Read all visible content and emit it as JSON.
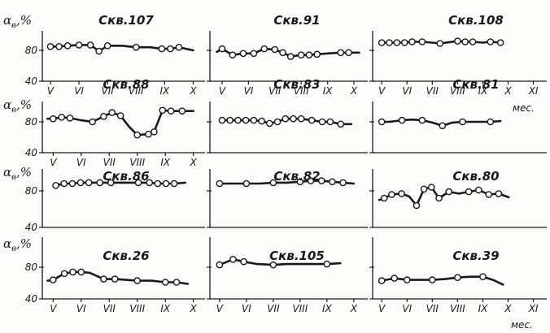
{
  "figure": {
    "y_axis_symbol": "α",
    "y_axis_subscript": "в",
    "y_axis_suffix": ",%",
    "unit_label": "мес."
  },
  "chart_data": [
    {
      "type": "line",
      "title": "Скв.107",
      "categories": [
        "V",
        "VI",
        "VII",
        "VIII",
        "IX",
        "X"
      ],
      "x": [
        5.0,
        5.3,
        5.6,
        6.0,
        6.4,
        6.7,
        7.0,
        7.5,
        8.0,
        8.5,
        8.9,
        9.2,
        9.5,
        10.0
      ],
      "y": [
        85,
        85,
        86,
        87,
        87,
        79,
        86,
        86,
        84,
        84,
        82,
        82,
        84,
        80
      ],
      "markers": [
        true,
        true,
        true,
        true,
        true,
        true,
        true,
        false,
        true,
        false,
        true,
        true,
        true,
        false
      ],
      "ytick_labels": [
        "80",
        "40"
      ],
      "ylim": [
        40,
        100
      ],
      "xlim": [
        4.8,
        10.3
      ]
    },
    {
      "type": "line",
      "title": "Скв.91",
      "categories": [
        "V",
        "VI",
        "VII",
        "VIII",
        "IX",
        "X"
      ],
      "x": [
        4.8,
        5.0,
        5.4,
        5.8,
        6.2,
        6.6,
        7.0,
        7.3,
        7.6,
        8.0,
        8.3,
        8.6,
        9.0,
        9.5,
        9.8,
        10.2
      ],
      "y": [
        78,
        82,
        74,
        76,
        76,
        82,
        81,
        77,
        72,
        74,
        74,
        75,
        76,
        77,
        77,
        77
      ],
      "markers": [
        false,
        true,
        true,
        true,
        true,
        true,
        true,
        true,
        true,
        true,
        true,
        true,
        false,
        true,
        true,
        false
      ],
      "ytick_labels": [],
      "ylim": [
        40,
        100
      ],
      "xlim": [
        4.6,
        10.4
      ]
    },
    {
      "type": "line",
      "title": "Скв.108",
      "categories": [
        "V",
        "VI",
        "VII",
        "VIII",
        "IX",
        "X",
        "XI"
      ],
      "x": [
        5.0,
        5.3,
        5.6,
        5.9,
        6.2,
        6.6,
        7.0,
        7.3,
        8.0,
        8.3,
        8.6,
        9.0,
        9.3,
        9.7
      ],
      "y": [
        90,
        90,
        90,
        90,
        91,
        91,
        90,
        89,
        92,
        91,
        91,
        90,
        91,
        90
      ],
      "markers": [
        true,
        true,
        true,
        true,
        true,
        true,
        false,
        true,
        true,
        true,
        true,
        false,
        true,
        true
      ],
      "ytick_labels": [],
      "ylim": [
        40,
        100
      ],
      "xlim": [
        4.8,
        11.4
      ]
    },
    {
      "type": "line",
      "title": "Скв.88",
      "categories": [
        "V",
        "VI",
        "VII",
        "VIII",
        "IX",
        "X"
      ],
      "x": [
        4.8,
        5.0,
        5.3,
        5.6,
        6.0,
        6.4,
        6.8,
        7.1,
        7.4,
        7.7,
        8.0,
        8.4,
        8.6,
        8.9,
        9.2,
        9.6,
        10.0
      ],
      "y": [
        84,
        84,
        86,
        85,
        82,
        80,
        87,
        92,
        88,
        74,
        63,
        64,
        67,
        95,
        94,
        94,
        94
      ],
      "markers": [
        false,
        true,
        true,
        true,
        false,
        true,
        true,
        true,
        true,
        false,
        true,
        true,
        true,
        true,
        true,
        true,
        false
      ],
      "ytick_labels": [
        "80",
        "40"
      ],
      "ylim": [
        40,
        100
      ],
      "xlim": [
        4.7,
        10.3
      ]
    },
    {
      "type": "line",
      "title": "Скв.83",
      "categories": [],
      "x": [
        5.0,
        5.3,
        5.6,
        5.9,
        6.2,
        6.5,
        6.8,
        7.1,
        7.4,
        7.7,
        8.0,
        8.4,
        8.8,
        9.1,
        9.5,
        9.9
      ],
      "y": [
        82,
        82,
        82,
        82,
        82,
        81,
        78,
        80,
        84,
        84,
        84,
        82,
        80,
        80,
        77,
        77
      ],
      "markers": [
        true,
        true,
        true,
        true,
        true,
        true,
        true,
        true,
        true,
        true,
        true,
        true,
        true,
        true,
        true,
        false
      ],
      "ytick_labels": [],
      "ylim": [
        40,
        100
      ],
      "xlim": [
        4.6,
        10.4
      ]
    },
    {
      "type": "line",
      "title": "Скв.81",
      "categories": [],
      "x": [
        5.0,
        5.3,
        5.8,
        6.2,
        6.6,
        7.0,
        7.4,
        7.8,
        8.2,
        8.6,
        9.0,
        9.3,
        9.7
      ],
      "y": [
        80,
        80,
        82,
        83,
        82,
        79,
        75,
        79,
        80,
        80,
        80,
        80,
        81
      ],
      "markers": [
        true,
        false,
        true,
        false,
        true,
        false,
        true,
        false,
        true,
        false,
        false,
        true,
        false
      ],
      "ytick_labels": [],
      "ylim": [
        40,
        100
      ],
      "xlim": [
        4.8,
        11.4
      ]
    },
    {
      "type": "line",
      "title": "Скв.86",
      "categories": [],
      "x": [
        5.0,
        5.3,
        5.6,
        5.9,
        6.2,
        6.6,
        7.0,
        7.4,
        8.0,
        8.4,
        8.7,
        9.0,
        9.3,
        9.7
      ],
      "y": [
        86,
        88,
        88,
        89,
        89,
        89,
        89,
        89,
        89,
        89,
        88,
        88,
        88,
        89
      ],
      "markers": [
        true,
        true,
        true,
        true,
        true,
        true,
        true,
        false,
        true,
        true,
        true,
        true,
        true,
        false
      ],
      "ytick_labels": [
        "80",
        "40"
      ],
      "ylim": [
        40,
        100
      ],
      "xlim": [
        4.6,
        10.3
      ]
    },
    {
      "type": "line",
      "title": "Скв.82",
      "categories": [],
      "x": [
        5.0,
        5.4,
        6.0,
        6.5,
        7.0,
        7.5,
        8.0,
        8.4,
        8.8,
        9.2,
        9.6,
        10.0
      ],
      "y": [
        88,
        88,
        88,
        88,
        89,
        89,
        90,
        91,
        91,
        90,
        89,
        88
      ],
      "markers": [
        true,
        false,
        true,
        false,
        true,
        false,
        true,
        true,
        true,
        true,
        true,
        false
      ],
      "ytick_labels": [],
      "ylim": [
        40,
        100
      ],
      "xlim": [
        4.7,
        10.4
      ]
    },
    {
      "type": "line",
      "title": "Скв.80",
      "categories": [],
      "x": [
        4.8,
        5.0,
        5.3,
        5.7,
        6.0,
        6.3,
        6.6,
        6.9,
        7.2,
        7.6,
        8.0,
        8.4,
        8.8,
        9.2,
        9.6,
        10.0
      ],
      "y": [
        70,
        72,
        76,
        77,
        74,
        64,
        82,
        84,
        72,
        79,
        77,
        79,
        81,
        76,
        77,
        73
      ],
      "markers": [
        false,
        true,
        true,
        true,
        false,
        true,
        true,
        true,
        true,
        true,
        false,
        true,
        true,
        true,
        true,
        false
      ],
      "ytick_labels": [],
      "ylim": [
        40,
        100
      ],
      "xlim": [
        4.7,
        11.4
      ]
    },
    {
      "type": "line",
      "title": "Скв.26",
      "categories": [
        "V",
        "VI",
        "VII",
        "VIII",
        "IX",
        "X"
      ],
      "x": [
        4.8,
        5.0,
        5.4,
        5.7,
        6.0,
        6.3,
        6.8,
        7.2,
        7.6,
        8.0,
        8.5,
        9.0,
        9.4,
        9.8
      ],
      "y": [
        63,
        64,
        72,
        74,
        74,
        73,
        65,
        65,
        64,
        63,
        63,
        61,
        61,
        59
      ],
      "markers": [
        false,
        true,
        true,
        true,
        true,
        false,
        true,
        true,
        false,
        true,
        false,
        true,
        true,
        false
      ],
      "ytick_labels": [
        "80",
        "40"
      ],
      "ylim": [
        40,
        100
      ],
      "xlim": [
        4.7,
        10.3
      ]
    },
    {
      "type": "line",
      "title": "Скв.105",
      "categories": [
        "V",
        "VI",
        "VII",
        "VIII",
        "IX",
        "X"
      ],
      "x": [
        5.0,
        5.5,
        5.9,
        6.4,
        7.0,
        7.5,
        8.0,
        8.5,
        9.0,
        9.5
      ],
      "y": [
        83,
        90,
        87,
        84,
        83,
        84,
        84,
        84,
        84,
        85
      ],
      "markers": [
        true,
        true,
        true,
        false,
        true,
        false,
        false,
        false,
        true,
        false
      ],
      "ytick_labels": [],
      "ylim": [
        40,
        100
      ],
      "xlim": [
        4.7,
        10.4
      ]
    },
    {
      "type": "line",
      "title": "Скв.39",
      "categories": [
        "V",
        "VI",
        "VII",
        "VIII",
        "IX",
        "X",
        "XI"
      ],
      "x": [
        5.0,
        5.5,
        6.0,
        6.5,
        7.0,
        7.5,
        8.0,
        8.5,
        9.0,
        9.4,
        9.8
      ],
      "y": [
        63,
        66,
        64,
        64,
        64,
        65,
        67,
        68,
        68,
        64,
        58
      ],
      "markers": [
        true,
        true,
        true,
        false,
        true,
        false,
        true,
        false,
        true,
        false,
        false
      ],
      "ytick_labels": [],
      "ylim": [
        40,
        100
      ],
      "xlim": [
        4.8,
        11.4
      ]
    }
  ]
}
